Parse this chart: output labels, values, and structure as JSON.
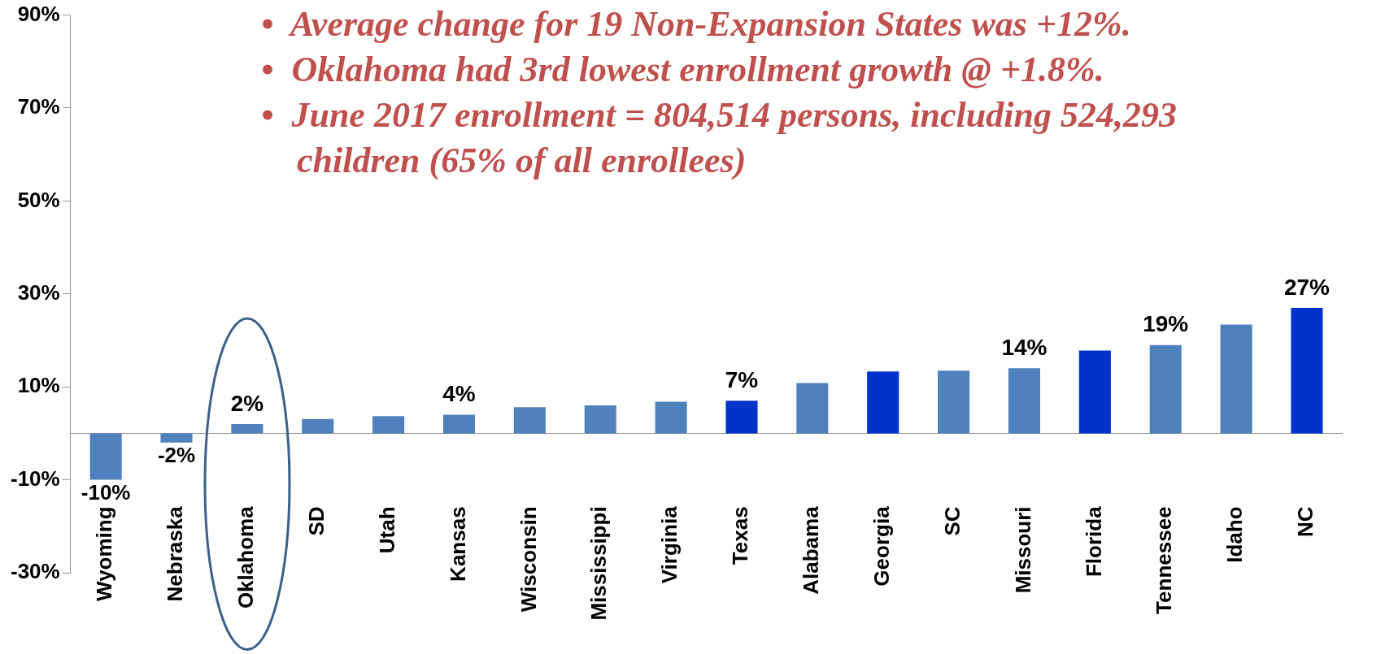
{
  "chart_data": {
    "type": "bar",
    "categories": [
      "Wyoming",
      "Nebraska",
      "Oklahoma",
      "SD",
      "Utah",
      "Kansas",
      "Wisconsin",
      "Mississippi",
      "Virginia",
      "Texas",
      "Alabama",
      "Georgia",
      "SC",
      "Missouri",
      "Florida",
      "Tennessee",
      "Idaho",
      "NC"
    ],
    "values": [
      -10,
      -2,
      2,
      3.1,
      3.7,
      4,
      5.6,
      6,
      6.8,
      7,
      10.8,
      13.3,
      13.5,
      14,
      17.8,
      19,
      23.4,
      27
    ],
    "colors": [
      "#4f81bd",
      "#4f81bd",
      "#4f81bd",
      "#4f81bd",
      "#4f81bd",
      "#4f81bd",
      "#4f81bd",
      "#4f81bd",
      "#4f81bd",
      "#0033cc",
      "#4f81bd",
      "#0033cc",
      "#4f81bd",
      "#4f81bd",
      "#0033cc",
      "#4f81bd",
      "#4f81bd",
      "#0033cc"
    ],
    "value_labels": [
      "-10%",
      "-2%",
      "2%",
      null,
      null,
      "4%",
      null,
      null,
      null,
      "7%",
      null,
      null,
      null,
      "14%",
      null,
      "19%",
      null,
      "27%"
    ],
    "ylim": [
      -30,
      90
    ],
    "yticks": [
      {
        "value": -30,
        "label": "-30%"
      },
      {
        "value": -10,
        "label": "-10%"
      },
      {
        "value": 10,
        "label": "10%"
      },
      {
        "value": 30,
        "label": "30%"
      },
      {
        "value": 50,
        "label": "50%"
      },
      {
        "value": 70,
        "label": "70%"
      },
      {
        "value": 90,
        "label": "90%"
      }
    ],
    "grid": false,
    "legend": false,
    "annotations": [
      "•  Average change for 19 Non-Expansion States was +12%.",
      "•  Oklahoma had 3rd lowest enrollment growth @ +1.8%.",
      "•  June 2017 enrollment = 804,514 persons, including 524,293 children (65% of all enrollees)"
    ]
  }
}
